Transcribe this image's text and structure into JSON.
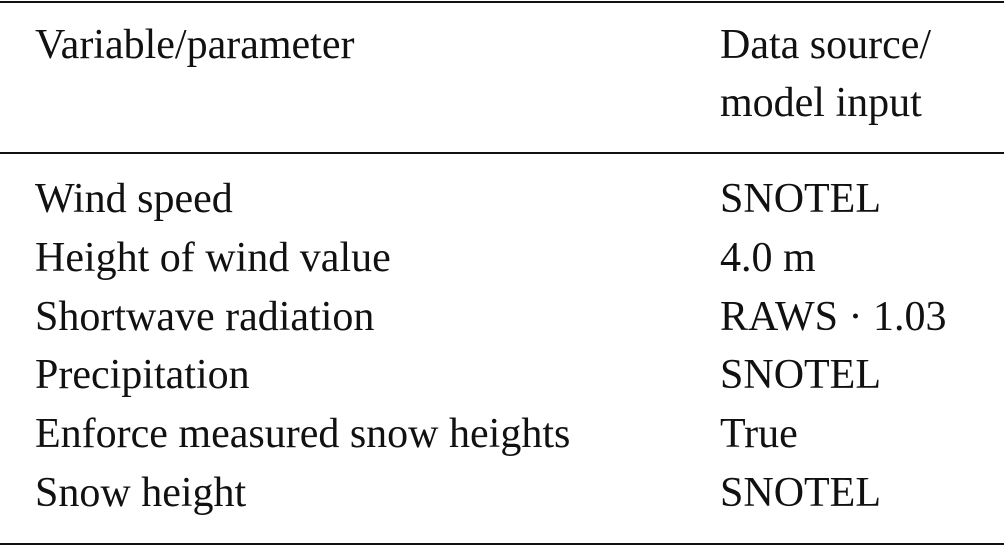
{
  "table": {
    "header": [
      "Variable/parameter",
      "Data source/\nmodel input"
    ],
    "rows": [
      [
        "Wind speed",
        "SNOTEL"
      ],
      [
        "Height of wind value",
        "4.0 m"
      ],
      [
        "Shortwave radiation",
        "RAWS · 1.03"
      ],
      [
        "Precipitation",
        "SNOTEL"
      ],
      [
        "Enforce measured snow heights",
        "True"
      ],
      [
        "Snow height",
        "SNOTEL"
      ]
    ]
  }
}
